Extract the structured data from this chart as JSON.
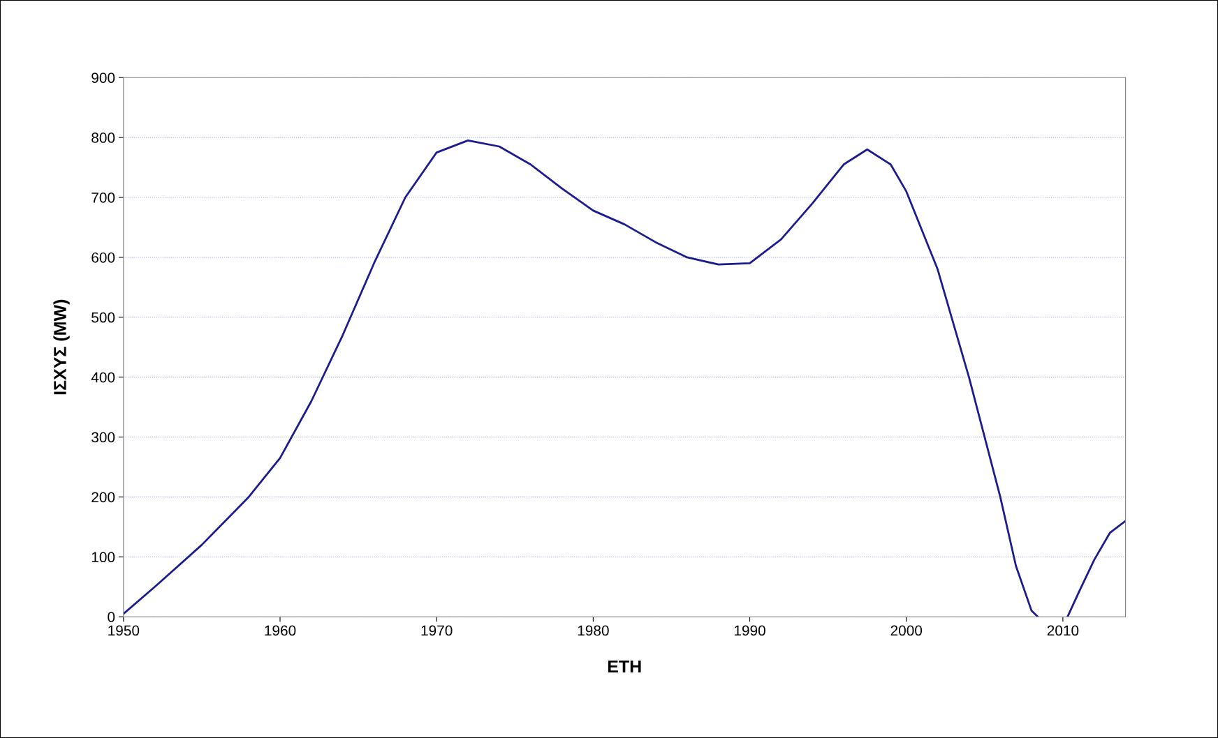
{
  "chart_data": {
    "type": "line",
    "xlabel": "ΕΤΗ",
    "ylabel": "ΙΣΧΥΣ (MW)",
    "x": [
      1950,
      1952,
      1955,
      1958,
      1960,
      1962,
      1964,
      1966,
      1968,
      1970,
      1972,
      1974,
      1976,
      1978,
      1980,
      1982,
      1984,
      1986,
      1988,
      1990,
      1992,
      1994,
      1996,
      1997.5,
      1999,
      2000,
      2002,
      2004,
      2006,
      2007,
      2008,
      2008.4,
      2009,
      2010.3,
      2011,
      2012,
      2013,
      2014
    ],
    "series": [
      {
        "color": "#1c1c8f",
        "values": [
          5,
          50,
          120,
          200,
          265,
          360,
          470,
          590,
          700,
          775,
          795,
          785,
          755,
          715,
          678,
          655,
          625,
          600,
          588,
          590,
          630,
          690,
          755,
          780,
          755,
          710,
          580,
          400,
          200,
          85,
          10,
          0,
          null,
          0,
          40,
          95,
          140,
          160
        ]
      }
    ],
    "xlim": [
      1950,
      2014
    ],
    "xticks": [
      1950,
      1960,
      1970,
      1980,
      1990,
      2000,
      2010
    ],
    "ylim": [
      0,
      900
    ],
    "yticks": [
      0,
      100,
      200,
      300,
      400,
      500,
      600,
      700,
      800,
      900
    ],
    "grid": "y",
    "legend": false,
    "marker": "none",
    "line_style": "solid"
  }
}
